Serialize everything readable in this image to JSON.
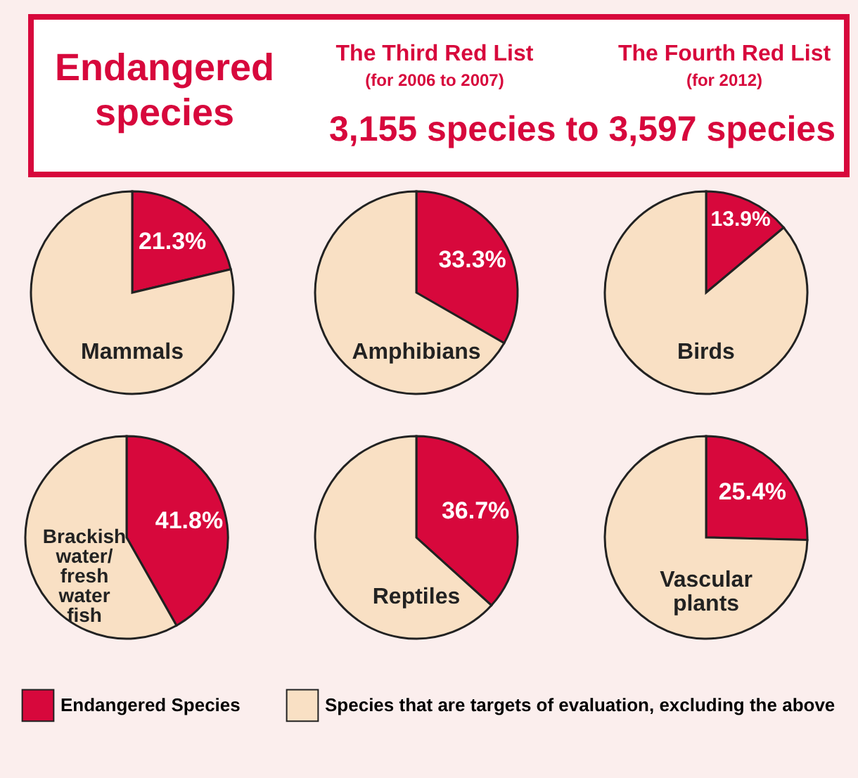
{
  "chart_data": [
    {
      "type": "other",
      "title": "Endangered species",
      "annotations": [
        "The Third Red List",
        "(for 2006 to 2007)",
        "The Fourth Red List",
        "(for 2012)",
        "3,155 species to 3,597 species"
      ]
    },
    {
      "type": "pie",
      "title": "Mammals",
      "categories": [
        "Endangered Species",
        "Species that are targets of evaluation, excluding the above"
      ],
      "values": [
        21.3,
        78.7
      ],
      "colors": [
        "#d7083c",
        "#f9e0c4"
      ],
      "value_labels": [
        "21.3%",
        null
      ],
      "legend": "bottom"
    },
    {
      "type": "pie",
      "title": "Amphibians",
      "categories": [
        null,
        null
      ],
      "values": [
        33.3,
        66.7
      ],
      "colors": [
        "#d7083c",
        "#f9e0c4"
      ],
      "value_labels": [
        "33.3%",
        null
      ]
    },
    {
      "type": "pie",
      "title": "Birds",
      "categories": [
        null,
        null
      ],
      "values": [
        13.9,
        86.1
      ],
      "colors": [
        "#d7083c",
        "#f9e0c4"
      ],
      "value_labels": [
        "13.9%",
        null
      ]
    },
    {
      "type": "pie",
      "title": "Brackish\nwater/\nfresh\nwater\nfish",
      "categories": [
        null,
        null
      ],
      "values": [
        41.8,
        58.2
      ],
      "colors": [
        "#d7083c",
        "#f9e0c4"
      ],
      "value_labels": [
        "41.8%",
        null
      ]
    },
    {
      "type": "pie",
      "title": "Reptiles",
      "categories": [
        null,
        null
      ],
      "values": [
        36.7,
        63.3
      ],
      "colors": [
        "#d7083c",
        "#f9e0c4"
      ],
      "value_labels": [
        "36.7%",
        null
      ]
    },
    {
      "type": "pie",
      "title": "Vascular\nplants",
      "categories": [
        null,
        null
      ],
      "values": [
        25.4,
        74.6
      ],
      "colors": [
        "#d7083c",
        "#f9e0c4"
      ],
      "value_labels": [
        "25.4%",
        null
      ]
    }
  ]
}
